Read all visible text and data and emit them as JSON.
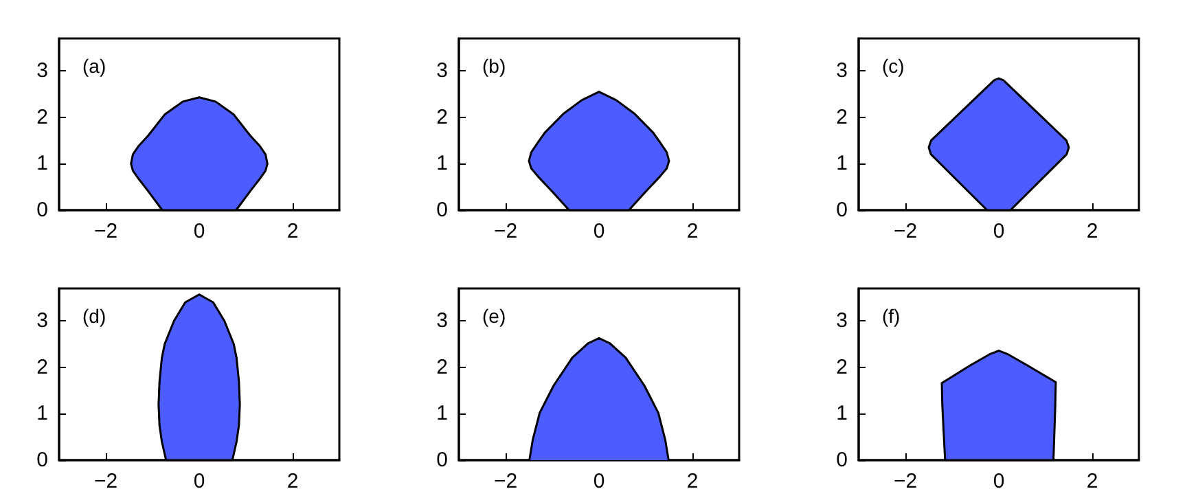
{
  "chart_data": [
    {
      "type": "area",
      "title": "(a)",
      "xlim": [
        -3,
        3
      ],
      "xticks": [
        -2,
        0,
        2
      ],
      "ylim": [
        0,
        3.7
      ],
      "yticks": [
        0,
        1,
        2,
        3
      ],
      "series": [
        {
          "color": "#4d5cff",
          "x": [
            -0.79,
            -1.1,
            -1.3,
            -1.42,
            -1.46,
            -1.42,
            -1.3,
            -1.09,
            -0.74,
            -0.35,
            0,
            0.35,
            0.74,
            1.09,
            1.3,
            1.42,
            1.46,
            1.42,
            1.3,
            1.1,
            0.79,
            -0.79
          ],
          "values": [
            0,
            0.42,
            0.68,
            0.85,
            1.0,
            1.2,
            1.38,
            1.61,
            2.06,
            2.34,
            2.43,
            2.34,
            2.06,
            1.61,
            1.38,
            1.2,
            1.0,
            0.85,
            0.68,
            0.42,
            0,
            0
          ]
        }
      ]
    },
    {
      "type": "area",
      "title": "(b)",
      "xlim": [
        -3,
        3
      ],
      "xticks": [
        -2,
        0,
        2
      ],
      "ylim": [
        0,
        3.7
      ],
      "yticks": [
        0,
        1,
        2,
        3
      ],
      "series": [
        {
          "color": "#4d5cff",
          "x": [
            -0.64,
            -1.0,
            -1.3,
            -1.45,
            -1.5,
            -1.45,
            -1.3,
            -1.16,
            -0.76,
            -0.37,
            0,
            0.37,
            0.76,
            1.16,
            1.3,
            1.45,
            1.5,
            1.45,
            1.3,
            1.0,
            0.64,
            -0.64
          ],
          "values": [
            0,
            0.4,
            0.72,
            0.9,
            1.06,
            1.25,
            1.47,
            1.67,
            2.08,
            2.37,
            2.55,
            2.37,
            2.08,
            1.67,
            1.47,
            1.25,
            1.06,
            0.9,
            0.72,
            0.4,
            0,
            0
          ]
        }
      ]
    },
    {
      "type": "area",
      "title": "(c)",
      "xlim": [
        -3,
        3
      ],
      "xticks": [
        -2,
        0,
        2
      ],
      "ylim": [
        0,
        3.7
      ],
      "yticks": [
        0,
        1,
        2,
        3
      ],
      "series": [
        {
          "color": "#4d5cff",
          "x": [
            -0.25,
            -1.45,
            -1.5,
            -1.45,
            -0.1,
            0,
            0.1,
            1.45,
            1.5,
            1.45,
            0.25,
            -0.25
          ],
          "values": [
            0,
            1.2,
            1.35,
            1.5,
            2.8,
            2.84,
            2.8,
            1.5,
            1.35,
            1.2,
            0,
            0
          ]
        }
      ]
    },
    {
      "type": "area",
      "title": "(d)",
      "xlim": [
        -3,
        3
      ],
      "xticks": [
        -2,
        0,
        2
      ],
      "ylim": [
        0,
        3.7
      ],
      "yticks": [
        0,
        1,
        2,
        3
      ],
      "series": [
        {
          "color": "#4d5cff",
          "x": [
            -0.71,
            -0.8,
            -0.85,
            -0.87,
            -0.85,
            -0.8,
            -0.74,
            -0.54,
            -0.3,
            0,
            0.3,
            0.54,
            0.74,
            0.8,
            0.85,
            0.87,
            0.85,
            0.8,
            0.71,
            -0.71
          ],
          "values": [
            0,
            0.4,
            0.75,
            1.2,
            1.7,
            2.2,
            2.5,
            3.0,
            3.4,
            3.57,
            3.4,
            3.0,
            2.5,
            2.2,
            1.7,
            1.2,
            0.75,
            0.4,
            0,
            0
          ]
        }
      ]
    },
    {
      "type": "area",
      "title": "(e)",
      "xlim": [
        -3,
        3
      ],
      "xticks": [
        -2,
        0,
        2
      ],
      "ylim": [
        0,
        3.7
      ],
      "yticks": [
        0,
        1,
        2,
        3
      ],
      "series": [
        {
          "color": "#4d5cff",
          "x": [
            -1.49,
            -1.42,
            -1.27,
            -0.97,
            -0.57,
            -0.23,
            0,
            0.23,
            0.57,
            0.97,
            1.27,
            1.42,
            1.49
          ],
          "values": [
            0,
            0.43,
            1.02,
            1.61,
            2.21,
            2.52,
            2.63,
            2.52,
            2.21,
            1.61,
            1.02,
            0.43,
            0
          ]
        }
      ]
    },
    {
      "type": "area",
      "title": "(f)",
      "xlim": [
        -3,
        3
      ],
      "xticks": [
        -2,
        0,
        2
      ],
      "ylim": [
        0,
        3.7
      ],
      "yticks": [
        0,
        1,
        2,
        3
      ],
      "series": [
        {
          "color": "#4d5cff",
          "x": [
            -1.15,
            -1.18,
            -1.21,
            -1.22,
            -0.6,
            -0.2,
            0,
            0.2,
            0.6,
            1.22,
            1.21,
            1.19,
            1.17,
            -1.15
          ],
          "values": [
            0,
            0.6,
            1.2,
            1.66,
            2.05,
            2.28,
            2.36,
            2.28,
            2.05,
            1.68,
            1.2,
            0.6,
            0,
            0
          ]
        }
      ]
    }
  ]
}
